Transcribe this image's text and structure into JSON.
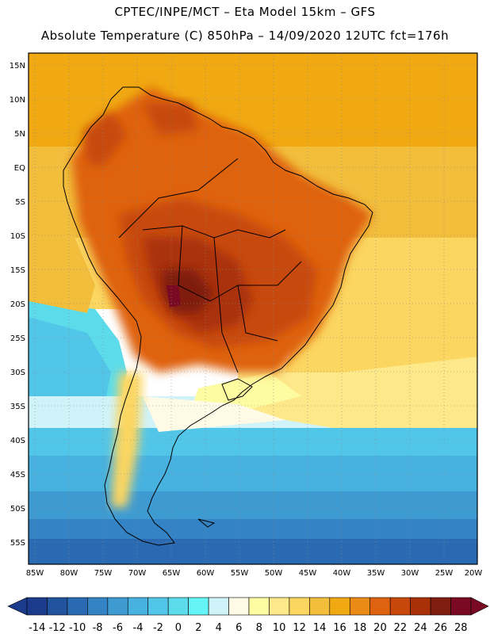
{
  "header": {
    "line1": "CPTEC/INPE/MCT –  Eta Model 15km – GFS",
    "line2": "Absolute Temperature (C) 850hPa – 14/09/2020 12UTC fct=176h"
  },
  "map": {
    "lat_labels": [
      "15N",
      "10N",
      "5N",
      "EQ",
      "5S",
      "10S",
      "15S",
      "20S",
      "25S",
      "30S",
      "35S",
      "40S",
      "45S",
      "50S",
      "55S"
    ],
    "lon_labels": [
      "85W",
      "80W",
      "75W",
      "70W",
      "65W",
      "60W",
      "55W",
      "50W",
      "45W",
      "40W",
      "35W",
      "30W",
      "25W",
      "20W"
    ]
  },
  "colorbar": {
    "labels": [
      "-14",
      "-12",
      "-10",
      "-8",
      "-6",
      "-4",
      "-2",
      "0",
      "2",
      "4",
      "6",
      "8",
      "10",
      "12",
      "14",
      "16",
      "18",
      "20",
      "22",
      "24",
      "26",
      "28"
    ],
    "colors": [
      "#1c3b8c",
      "#22539f",
      "#2a6ab3",
      "#3483c4",
      "#3d9bd2",
      "#47b1df",
      "#52c6e8",
      "#5cdceb",
      "#66f5f6",
      "#cff3f9",
      "#fefae6",
      "#fefca0",
      "#fde88a",
      "#fbd660",
      "#f2be3c",
      "#f0a912",
      "#ea8a17",
      "#df6210",
      "#c8480c",
      "#aa3008",
      "#7f1d10",
      "#7a0a24"
    ]
  }
}
